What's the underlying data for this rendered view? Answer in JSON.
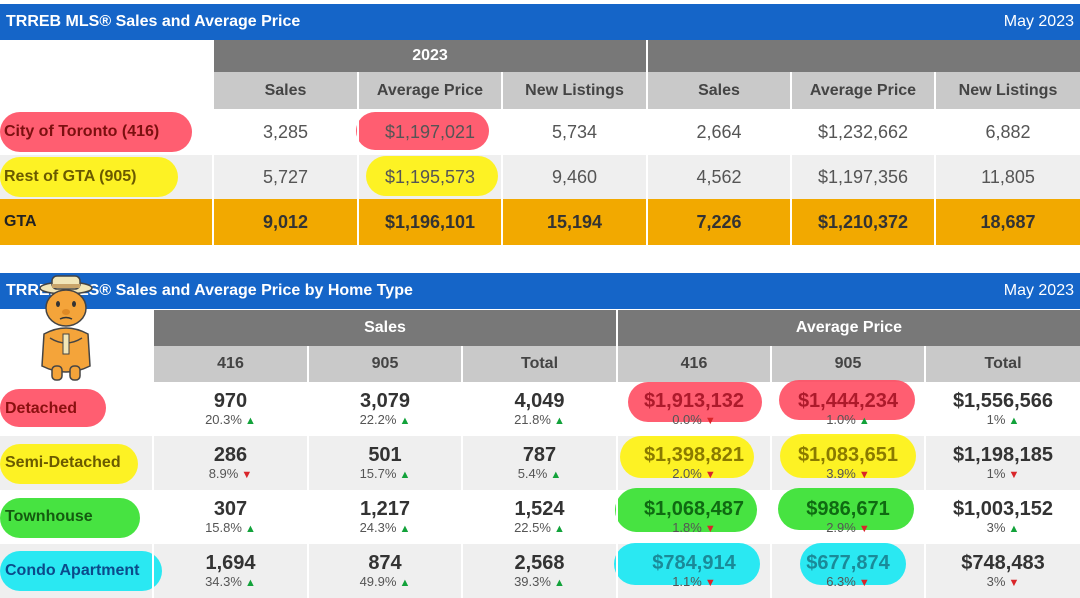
{
  "table1": {
    "title": "TRREB MLS® Sales and Average Price",
    "date": "May 2023",
    "group_2023": "2023",
    "group_2022": "",
    "columns": [
      "Sales",
      "Average Price",
      "New Listings",
      "Sales",
      "Average Price",
      "New Listings"
    ],
    "rows": [
      {
        "label": "City of Toronto (416)",
        "values": [
          "3,285",
          "$1,197,021",
          "5,734",
          "2,664",
          "$1,232,662",
          "6,882"
        ]
      },
      {
        "label": "Rest of GTA (905)",
        "values": [
          "5,727",
          "$1,195,573",
          "9,460",
          "4,562",
          "$1,197,356",
          "11,805"
        ]
      },
      {
        "label": "GTA",
        "values": [
          "9,012",
          "$1,196,101",
          "15,194",
          "7,226",
          "$1,210,372",
          "18,687"
        ]
      }
    ]
  },
  "table2": {
    "title": "TRREB MLS® Sales and Average Price by Home Type",
    "date": "May 2023",
    "group_sales": "Sales",
    "group_price": "Average Price",
    "columns": [
      "416",
      "905",
      "Total",
      "416",
      "905",
      "Total"
    ],
    "rows": [
      {
        "label": "Detached",
        "cells": [
          {
            "v": "970",
            "c": "20.3%",
            "d": "up"
          },
          {
            "v": "3,079",
            "c": "22.2%",
            "d": "up"
          },
          {
            "v": "4,049",
            "c": "21.8%",
            "d": "up"
          },
          {
            "v": "$1,913,132",
            "c": "0.0%",
            "d": "down"
          },
          {
            "v": "$1,444,234",
            "c": "1.0%",
            "d": "up"
          },
          {
            "v": "$1,556,566",
            "c": "1%",
            "d": "up"
          }
        ]
      },
      {
        "label": "Semi-Detached",
        "cells": [
          {
            "v": "286",
            "c": "8.9%",
            "d": "down"
          },
          {
            "v": "501",
            "c": "15.7%",
            "d": "up"
          },
          {
            "v": "787",
            "c": "5.4%",
            "d": "up"
          },
          {
            "v": "$1,398,821",
            "c": "2.0%",
            "d": "down"
          },
          {
            "v": "$1,083,651",
            "c": "3.9%",
            "d": "down"
          },
          {
            "v": "$1,198,185",
            "c": "1%",
            "d": "down"
          }
        ]
      },
      {
        "label": "Townhouse",
        "cells": [
          {
            "v": "307",
            "c": "15.8%",
            "d": "up"
          },
          {
            "v": "1,217",
            "c": "24.3%",
            "d": "up"
          },
          {
            "v": "1,524",
            "c": "22.5%",
            "d": "up"
          },
          {
            "v": "$1,068,487",
            "c": "1.8%",
            "d": "down"
          },
          {
            "v": "$986,671",
            "c": "2.9%",
            "d": "down"
          },
          {
            "v": "$1,003,152",
            "c": "3%",
            "d": "up"
          }
        ]
      },
      {
        "label": "Condo Apartment",
        "cells": [
          {
            "v": "1,694",
            "c": "34.3%",
            "d": "up"
          },
          {
            "v": "874",
            "c": "49.9%",
            "d": "up"
          },
          {
            "v": "2,568",
            "c": "39.3%",
            "d": "up"
          },
          {
            "v": "$784,914",
            "c": "1.1%",
            "d": "down"
          },
          {
            "v": "$677,874",
            "c": "6.3%",
            "d": "down"
          },
          {
            "v": "$748,483",
            "c": "3%",
            "d": "down"
          }
        ]
      }
    ]
  },
  "colors": {
    "title_bar": "#1565c8",
    "gta_row": "#f2a900",
    "highlight_red": "#ff4d62",
    "highlight_yellow": "#fff200",
    "highlight_green": "#33e02c",
    "highlight_cyan": "#14e7f2",
    "arrow_up": "#12a23a",
    "arrow_down": "#d9252a"
  },
  "icons": {
    "up": "triangle-up-icon",
    "down": "triangle-down-icon",
    "sticker": "cartoon-character-sticker"
  }
}
